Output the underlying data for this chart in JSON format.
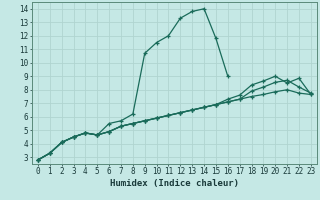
{
  "xlabel": "Humidex (Indice chaleur)",
  "bg_color": "#c5e8e5",
  "grid_color": "#b0d4d0",
  "line_color": "#1a6b5a",
  "xlim": [
    -0.5,
    23.5
  ],
  "ylim": [
    2.5,
    14.5
  ],
  "xticks": [
    0,
    1,
    2,
    3,
    4,
    5,
    6,
    7,
    8,
    9,
    10,
    11,
    12,
    13,
    14,
    15,
    16,
    17,
    18,
    19,
    20,
    21,
    22,
    23
  ],
  "yticks": [
    3,
    4,
    5,
    6,
    7,
    8,
    9,
    10,
    11,
    12,
    13,
    14
  ],
  "curves": [
    {
      "x": [
        0,
        1,
        2,
        3,
        4,
        5,
        6,
        7,
        8,
        9,
        10,
        11,
        12,
        13,
        14,
        15,
        16
      ],
      "y": [
        2.8,
        3.3,
        4.1,
        4.5,
        4.8,
        4.65,
        5.5,
        5.7,
        6.2,
        10.7,
        11.5,
        12.0,
        13.3,
        13.8,
        14.0,
        11.8,
        9.0
      ]
    },
    {
      "x": [
        0,
        1,
        2,
        3,
        4,
        5,
        6,
        7,
        8,
        9,
        10,
        11,
        12,
        13,
        14,
        15,
        16,
        17,
        18,
        19,
        20,
        21,
        22,
        23
      ],
      "y": [
        2.8,
        3.3,
        4.1,
        4.5,
        4.8,
        4.65,
        4.9,
        5.3,
        5.5,
        5.7,
        5.9,
        6.1,
        6.3,
        6.5,
        6.7,
        6.9,
        7.1,
        7.3,
        7.5,
        7.65,
        7.85,
        8.0,
        7.75,
        7.65
      ]
    },
    {
      "x": [
        0,
        1,
        2,
        3,
        4,
        5,
        6,
        7,
        8,
        9,
        10,
        11,
        12,
        13,
        14,
        15,
        16,
        17,
        18,
        19,
        20,
        21,
        22,
        23
      ],
      "y": [
        2.8,
        3.3,
        4.1,
        4.5,
        4.8,
        4.65,
        4.9,
        5.3,
        5.5,
        5.7,
        5.9,
        6.1,
        6.3,
        6.5,
        6.7,
        6.9,
        7.1,
        7.3,
        7.9,
        8.2,
        8.55,
        8.7,
        8.2,
        7.75
      ]
    },
    {
      "x": [
        0,
        1,
        2,
        3,
        4,
        5,
        6,
        7,
        8,
        9,
        10,
        11,
        12,
        13,
        14,
        15,
        16,
        17,
        18,
        19,
        20,
        21,
        22,
        23
      ],
      "y": [
        2.8,
        3.3,
        4.1,
        4.5,
        4.8,
        4.65,
        4.9,
        5.3,
        5.5,
        5.7,
        5.9,
        6.1,
        6.3,
        6.5,
        6.7,
        6.9,
        7.3,
        7.6,
        8.35,
        8.65,
        9.0,
        8.5,
        8.85,
        7.65
      ]
    }
  ]
}
